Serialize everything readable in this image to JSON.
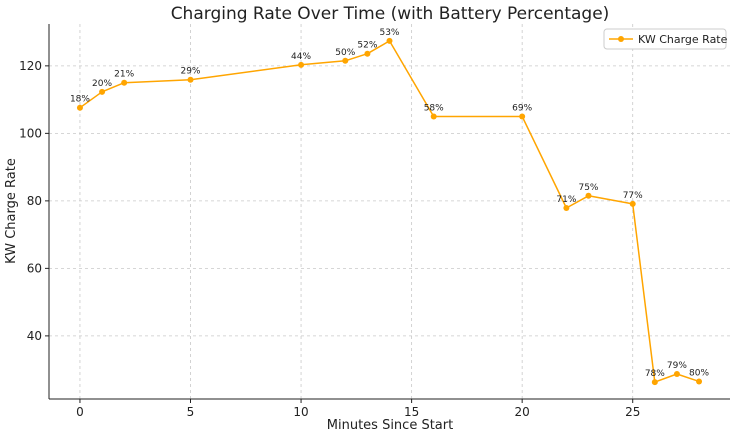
{
  "chart_data": {
    "type": "line",
    "title": "Charging Rate Over Time (with Battery Percentage)",
    "xlabel": "Minutes Since Start",
    "ylabel": "KW Charge Rate",
    "xlim": [
      -1.4,
      29.4
    ],
    "ylim": [
      21.3,
      132.4
    ],
    "xticks": [
      0,
      5,
      10,
      15,
      20,
      25
    ],
    "yticks": [
      40,
      60,
      80,
      100,
      120
    ],
    "grid": true,
    "legend": {
      "position": "top-right"
    },
    "series": [
      {
        "name": "KW Charge Rate",
        "color": "#FFA500",
        "marker": "circle",
        "x": [
          0,
          1,
          2,
          5,
          10,
          12,
          13,
          14,
          16,
          20,
          22,
          23,
          25,
          26,
          27,
          28
        ],
        "y": [
          107.6,
          112.3,
          115.0,
          115.9,
          120.3,
          121.5,
          123.6,
          127.4,
          105.0,
          105.0,
          77.9,
          81.5,
          79.1,
          26.3,
          28.7,
          26.5
        ],
        "point_labels": [
          "18%",
          "20%",
          "21%",
          "29%",
          "44%",
          "50%",
          "52%",
          "53%",
          "58%",
          "69%",
          "71%",
          "75%",
          "77%",
          "78%",
          "79%",
          "80%"
        ]
      }
    ]
  }
}
